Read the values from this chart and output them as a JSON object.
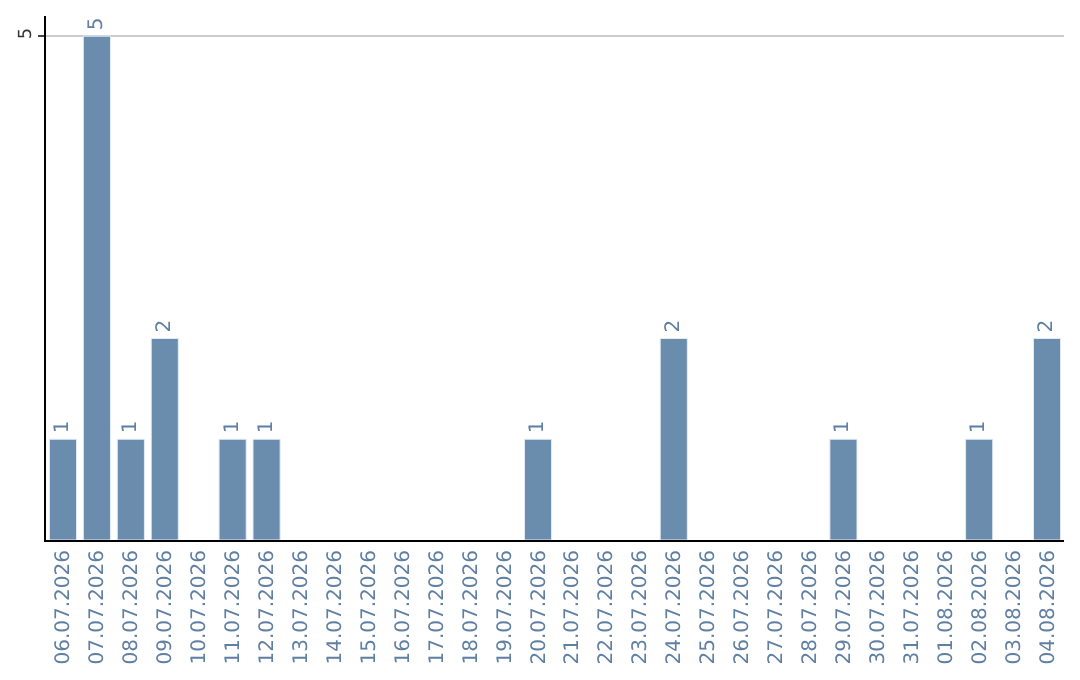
{
  "chart_data": {
    "type": "bar",
    "categories": [
      "06.07.2026",
      "07.07.2026",
      "08.07.2026",
      "09.07.2026",
      "10.07.2026",
      "11.07.2026",
      "12.07.2026",
      "13.07.2026",
      "14.07.2026",
      "15.07.2026",
      "16.07.2026",
      "17.07.2026",
      "18.07.2026",
      "19.07.2026",
      "20.07.2026",
      "21.07.2026",
      "22.07.2026",
      "23.07.2026",
      "24.07.2026",
      "25.07.2026",
      "26.07.2026",
      "27.07.2026",
      "28.07.2026",
      "29.07.2026",
      "30.07.2026",
      "31.07.2026",
      "01.08.2026",
      "02.08.2026",
      "03.08.2026",
      "04.08.2026"
    ],
    "values": [
      1,
      5,
      1,
      2,
      null,
      1,
      1,
      null,
      null,
      null,
      null,
      null,
      null,
      null,
      1,
      null,
      null,
      null,
      2,
      null,
      null,
      null,
      null,
      1,
      null,
      null,
      null,
      1,
      null,
      2
    ],
    "color": "#6a8cad",
    "ylim": [
      0,
      5.2
    ],
    "yticks": [
      5
    ],
    "grid": "y",
    "data_labels": true,
    "legend": false
  }
}
